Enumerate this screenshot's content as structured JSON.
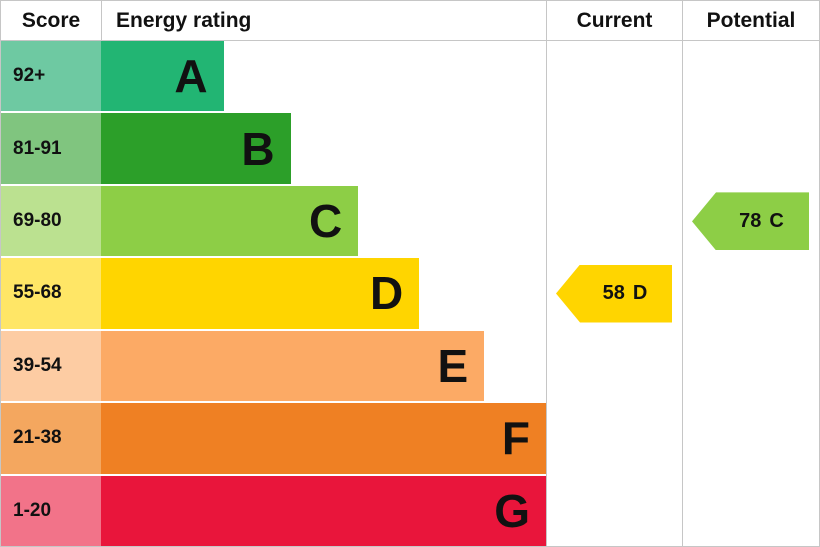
{
  "header": {
    "score": "Score",
    "energy_rating": "Energy rating",
    "current": "Current",
    "potential": "Potential"
  },
  "chart_data": {
    "type": "bar",
    "title": "Energy rating",
    "xlabel": "Score",
    "bands": [
      {
        "score_range": "92+",
        "letter": "A",
        "color": "#22b573",
        "score_bg": "#6ec9a2",
        "width_pct": 22.5
      },
      {
        "score_range": "81-91",
        "letter": "B",
        "color": "#2c9f29",
        "score_bg": "#80c57f",
        "width_pct": 34.8
      },
      {
        "score_range": "69-80",
        "letter": "C",
        "color": "#8dce46",
        "score_bg": "#bbe190",
        "width_pct": 47.2
      },
      {
        "score_range": "55-68",
        "letter": "D",
        "color": "#ffd500",
        "score_bg": "#ffe666",
        "width_pct": 58.4
      },
      {
        "score_range": "39-54",
        "letter": "E",
        "color": "#fcaa65",
        "score_bg": "#fdcca3",
        "width_pct": 70.3
      },
      {
        "score_range": "21-38",
        "letter": "F",
        "color": "#ef8023",
        "score_bg": "#f4a75f",
        "width_pct": 82.5
      },
      {
        "score_range": "1-20",
        "letter": "G",
        "color": "#e9153b",
        "score_bg": "#f27389",
        "width_pct": 94.4
      }
    ],
    "markers": {
      "current": {
        "value": "58",
        "letter": "D",
        "band_index": 3,
        "color": "#ffd500"
      },
      "potential": {
        "value": "78",
        "letter": "C",
        "band_index": 2,
        "color": "#8dce46"
      }
    }
  }
}
